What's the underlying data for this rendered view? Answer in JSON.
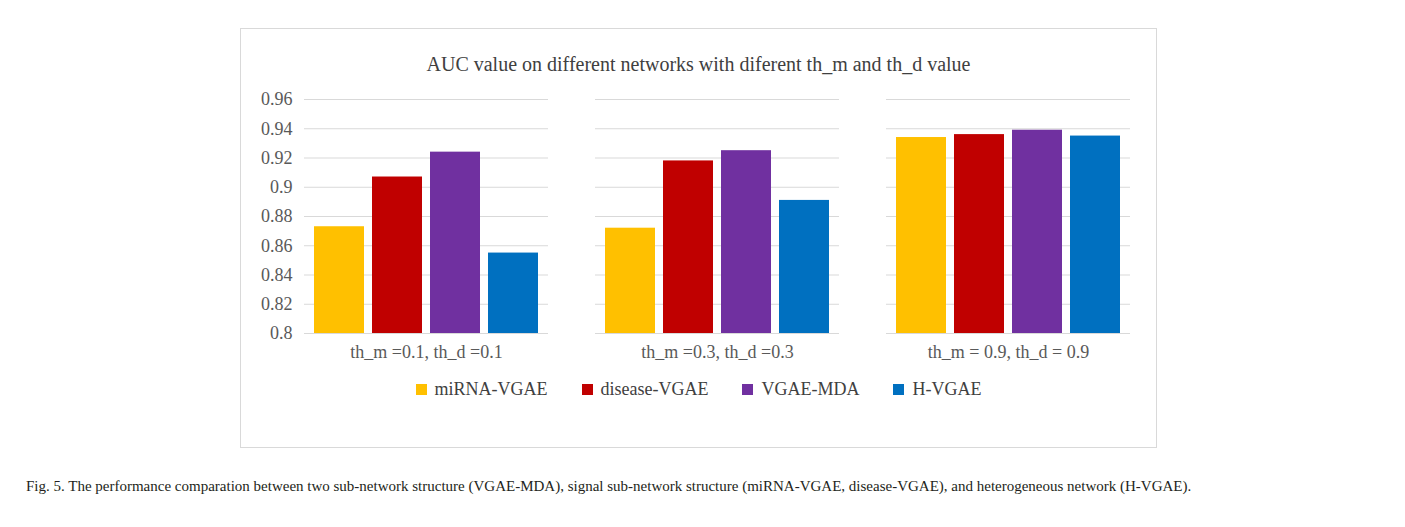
{
  "chart_data": {
    "type": "bar",
    "title": "AUC value on different networks with diferent th_m and th_d value",
    "caption": "Fig. 5. The performance comparation between two sub-network structure (VGAE-MDA), signal sub-network structure (miRNA-VGAE, disease-VGAE), and heterogeneous network (H-VGAE).",
    "categories": [
      "th_m =0.1, th_d =0.1",
      "th_m =0.3, th_d =0.3",
      "th_m = 0.9, th_d = 0.9"
    ],
    "series": [
      {
        "name": "miRNA-VGAE",
        "color": "#FFC000",
        "values": [
          0.873,
          0.872,
          0.934
        ]
      },
      {
        "name": "disease-VGAE",
        "color": "#C00000",
        "values": [
          0.907,
          0.918,
          0.936
        ]
      },
      {
        "name": "VGAE-MDA",
        "color": "#7030A0",
        "values": [
          0.924,
          0.925,
          0.939
        ]
      },
      {
        "name": "H-VGAE",
        "color": "#0070C0",
        "values": [
          0.855,
          0.891,
          0.935
        ]
      }
    ],
    "ylim": [
      0.8,
      0.96
    ],
    "yticks": [
      0.8,
      0.82,
      0.84,
      0.86,
      0.88,
      0.9,
      0.92,
      0.94,
      0.96
    ],
    "grid": true,
    "legend": "bottom"
  }
}
